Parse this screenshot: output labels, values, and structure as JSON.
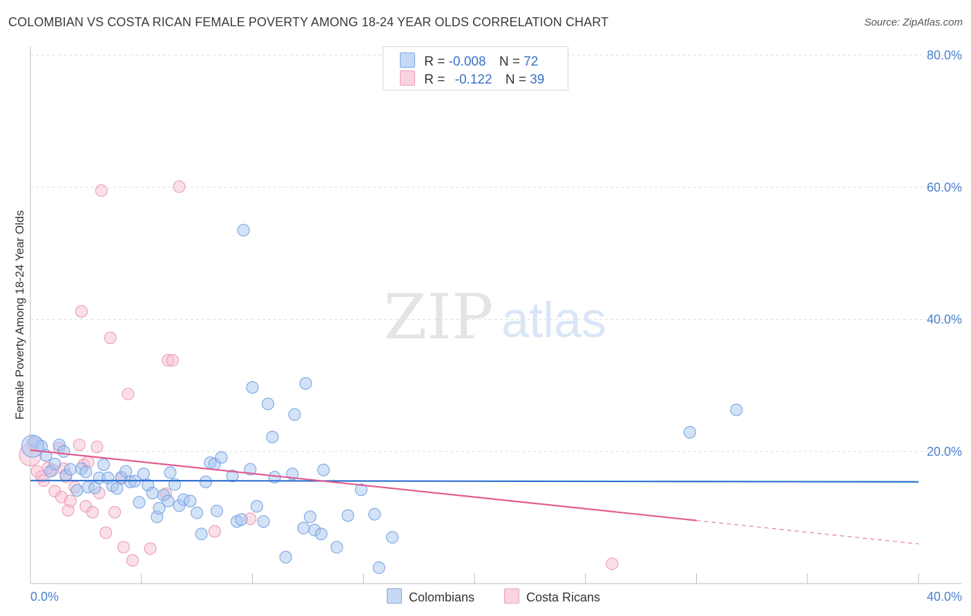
{
  "title": "COLOMBIAN VS COSTA RICAN FEMALE POVERTY AMONG 18-24 YEAR OLDS CORRELATION CHART",
  "source": "Source: ZipAtlas.com",
  "watermark": {
    "zip": "ZIP",
    "atlas": "atlas"
  },
  "legend": {
    "colombians": {
      "r_label": "R = ",
      "r_value": "-0.008",
      "n_label": "N = ",
      "n_value": "72"
    },
    "costa_ricans": {
      "r_label": "R = ",
      "r_value": "-0.122",
      "n_label": "N = ",
      "n_value": "39"
    }
  },
  "bottom_legend": {
    "colombians": "Colombians",
    "costa_ricans": "Costa Ricans"
  },
  "colors": {
    "blue_fill": "#a8c6ef",
    "blue_stroke": "#6f9ee0",
    "blue_line": "#2d6fd1",
    "pink_fill": "#f6bfd1",
    "pink_stroke": "#ec93b1",
    "pink_line": "#e05a8e",
    "tick_text": "#4a7fd0"
  },
  "chart_data": {
    "type": "scatter",
    "title": "COLOMBIAN VS COSTA RICAN FEMALE POVERTY AMONG 18-24 YEAR OLDS CORRELATION CHART",
    "xlabel": "",
    "ylabel": "Female Poverty Among 18-24 Year Olds",
    "xlim": [
      0,
      40
    ],
    "ylim": [
      0,
      80
    ],
    "x_tick_labels": [
      "0.0%",
      "40.0%"
    ],
    "y_tick_labels": [
      "20.0%",
      "40.0%",
      "60.0%",
      "80.0%"
    ],
    "y_ticks": [
      20,
      40,
      60,
      80
    ],
    "grid": true,
    "legend_position": "top-center",
    "series": [
      {
        "name": "Colombians",
        "r": -0.008,
        "n": 72,
        "trend": {
          "x": [
            0,
            40
          ],
          "y": [
            15.6,
            15.4
          ]
        },
        "points": [
          [
            0.2,
            21.5
          ],
          [
            0.5,
            20.8
          ],
          [
            0.7,
            19.4
          ],
          [
            0.9,
            17.0
          ],
          [
            1.1,
            18.1
          ],
          [
            1.3,
            21.0
          ],
          [
            1.5,
            20.0
          ],
          [
            1.6,
            16.4
          ],
          [
            1.8,
            17.3
          ],
          [
            2.1,
            14.1
          ],
          [
            2.3,
            17.4
          ],
          [
            2.5,
            16.9
          ],
          [
            2.6,
            14.6
          ],
          [
            2.9,
            14.5
          ],
          [
            3.1,
            16.0
          ],
          [
            3.3,
            18.0
          ],
          [
            3.5,
            16.0
          ],
          [
            3.7,
            14.8
          ],
          [
            3.9,
            14.4
          ],
          [
            4.1,
            16.1
          ],
          [
            4.3,
            17.0
          ],
          [
            4.5,
            15.4
          ],
          [
            4.7,
            15.5
          ],
          [
            4.9,
            12.3
          ],
          [
            5.1,
            16.6
          ],
          [
            5.3,
            14.9
          ],
          [
            5.5,
            13.7
          ],
          [
            5.7,
            10.1
          ],
          [
            5.8,
            11.4
          ],
          [
            6.0,
            13.4
          ],
          [
            6.2,
            12.5
          ],
          [
            6.3,
            16.8
          ],
          [
            6.5,
            15.0
          ],
          [
            6.7,
            11.8
          ],
          [
            6.9,
            12.7
          ],
          [
            7.2,
            12.5
          ],
          [
            7.5,
            10.7
          ],
          [
            7.7,
            7.5
          ],
          [
            7.9,
            15.4
          ],
          [
            8.1,
            18.3
          ],
          [
            8.3,
            18.1
          ],
          [
            8.4,
            11.0
          ],
          [
            8.6,
            19.1
          ],
          [
            9.1,
            16.3
          ],
          [
            9.3,
            9.4
          ],
          [
            9.5,
            9.7
          ],
          [
            9.6,
            53.5
          ],
          [
            9.9,
            17.3
          ],
          [
            10.0,
            29.7
          ],
          [
            10.2,
            11.7
          ],
          [
            10.5,
            9.4
          ],
          [
            10.7,
            27.2
          ],
          [
            10.9,
            22.2
          ],
          [
            11.0,
            16.1
          ],
          [
            11.5,
            4.0
          ],
          [
            11.8,
            16.6
          ],
          [
            11.9,
            25.6
          ],
          [
            12.3,
            8.4
          ],
          [
            12.4,
            30.3
          ],
          [
            12.6,
            10.1
          ],
          [
            12.8,
            8.1
          ],
          [
            13.1,
            7.5
          ],
          [
            13.2,
            17.2
          ],
          [
            13.8,
            5.5
          ],
          [
            14.3,
            10.3
          ],
          [
            14.9,
            14.2
          ],
          [
            15.5,
            10.5
          ],
          [
            15.7,
            2.4
          ],
          [
            16.3,
            7.0
          ],
          [
            29.7,
            22.9
          ],
          [
            31.8,
            26.3
          ],
          [
            0.1,
            20.8
          ]
        ]
      },
      {
        "name": "Costa Ricans",
        "r": -0.122,
        "n": 39,
        "trend": {
          "x": [
            0,
            40
          ],
          "y": [
            20.2,
            6.0
          ]
        },
        "trend_solid_until_x": 30,
        "points": [
          [
            0.1,
            21.2
          ],
          [
            0.3,
            17.0
          ],
          [
            0.5,
            16.2
          ],
          [
            0.6,
            15.6
          ],
          [
            0.8,
            17.5
          ],
          [
            1.0,
            17.2
          ],
          [
            1.1,
            14.0
          ],
          [
            1.3,
            20.5
          ],
          [
            1.4,
            13.1
          ],
          [
            1.5,
            17.4
          ],
          [
            1.6,
            16.2
          ],
          [
            1.7,
            11.1
          ],
          [
            1.8,
            12.5
          ],
          [
            2.0,
            14.6
          ],
          [
            2.2,
            21.0
          ],
          [
            2.3,
            41.2
          ],
          [
            2.4,
            18.0
          ],
          [
            2.5,
            11.7
          ],
          [
            2.6,
            18.4
          ],
          [
            2.8,
            10.8
          ],
          [
            3.0,
            20.7
          ],
          [
            3.1,
            13.7
          ],
          [
            3.2,
            59.5
          ],
          [
            3.4,
            7.7
          ],
          [
            3.6,
            37.2
          ],
          [
            3.8,
            10.8
          ],
          [
            4.1,
            15.9
          ],
          [
            4.2,
            5.5
          ],
          [
            4.4,
            28.7
          ],
          [
            4.6,
            3.5
          ],
          [
            5.4,
            5.3
          ],
          [
            6.1,
            13.6
          ],
          [
            6.2,
            33.8
          ],
          [
            6.4,
            33.8
          ],
          [
            6.7,
            60.1
          ],
          [
            8.3,
            7.9
          ],
          [
            9.9,
            9.8
          ],
          [
            26.2,
            3.0
          ],
          [
            0.0,
            19.5
          ]
        ]
      }
    ]
  }
}
